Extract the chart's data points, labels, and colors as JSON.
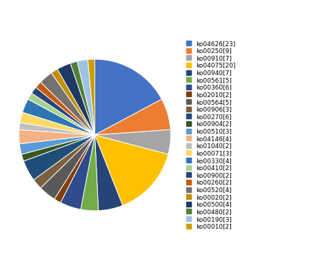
{
  "labels": [
    "ko04626[23]",
    "ko00250[9]",
    "ko00910[7]",
    "ko04075[20]",
    "ko00940[7]",
    "ko00561[5]",
    "ko00360[6]",
    "ko02010[2]",
    "ko00564[5]",
    "ko00906[3]",
    "ko00270[6]",
    "ko00904[2]",
    "ko00510[3]",
    "ko04146[4]",
    "ko01040[2]",
    "ko00071[3]",
    "ko00330[4]",
    "ko00410[2]",
    "ko00900[2]",
    "ko00260[2]",
    "ko00520[4]",
    "ko00020[2]",
    "ko00500[4]",
    "ko00480[2]",
    "ko00190[3]",
    "ko00010[2]"
  ],
  "values": [
    23,
    9,
    7,
    20,
    7,
    5,
    6,
    2,
    5,
    3,
    6,
    2,
    3,
    4,
    2,
    3,
    4,
    2,
    2,
    2,
    4,
    2,
    4,
    2,
    3,
    2
  ],
  "colors": [
    "#4472C4",
    "#ED7D31",
    "#A5A5A5",
    "#FFC000",
    "#264478",
    "#70AD47",
    "#2E4B8C",
    "#843C0C",
    "#595959",
    "#7B5E3E",
    "#1F4E79",
    "#375623",
    "#5B9BD5",
    "#F4B183",
    "#BFBFBF",
    "#FFD966",
    "#2E75B6",
    "#A9D18E",
    "#264478",
    "#C55A11",
    "#767171",
    "#BF8F00",
    "#203864",
    "#538135",
    "#9DC3E6",
    "#C9A000"
  ],
  "legend_fontsize": 6.5,
  "figsize": [
    4.74,
    3.92
  ],
  "dpi": 100
}
